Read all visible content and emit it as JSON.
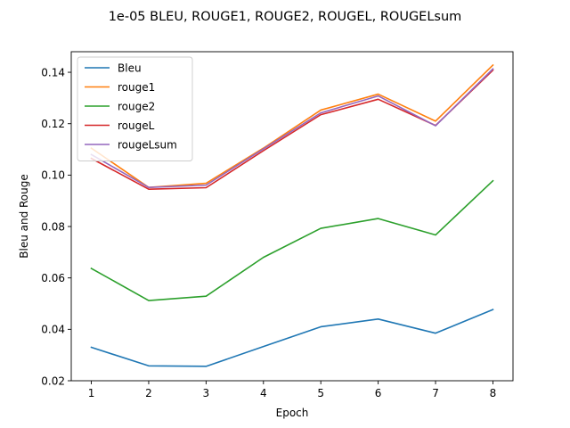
{
  "chart_data": {
    "type": "line",
    "title": "1e-05 BLEU, ROUGE1, ROUGE2, ROUGEL, ROUGELsum",
    "xlabel": "Epoch",
    "ylabel": "Bleu and Rouge",
    "x": [
      1,
      2,
      3,
      4,
      5,
      6,
      7,
      8
    ],
    "xticks": [
      "1",
      "2",
      "3",
      "4",
      "5",
      "6",
      "7",
      "8"
    ],
    "yticks": [
      "0.02",
      "0.04",
      "0.06",
      "0.08",
      "0.10",
      "0.12",
      "0.14"
    ],
    "ylim": [
      0.02,
      0.148
    ],
    "xlim": [
      0.65,
      8.35
    ],
    "grid": false,
    "legend_position": "top-left",
    "series": [
      {
        "name": "Bleu",
        "color": "#1f77b4",
        "values": [
          0.033,
          0.0258,
          0.0256,
          0.0333,
          0.041,
          0.044,
          0.0385,
          0.0477
        ]
      },
      {
        "name": "rouge1",
        "color": "#ff7f0e",
        "values": [
          0.1105,
          0.0952,
          0.0968,
          0.1105,
          0.1253,
          0.1315,
          0.121,
          0.1428
        ]
      },
      {
        "name": "rouge2",
        "color": "#2ca02c",
        "values": [
          0.0637,
          0.0512,
          0.0529,
          0.068,
          0.0793,
          0.0831,
          0.0767,
          0.0978
        ]
      },
      {
        "name": "rougeL",
        "color": "#d62728",
        "values": [
          0.1065,
          0.0945,
          0.0951,
          0.1095,
          0.1235,
          0.1295,
          0.1193,
          0.1408
        ]
      },
      {
        "name": "rougeLsum",
        "color": "#9467bd",
        "values": [
          0.108,
          0.0952,
          0.0961,
          0.1102,
          0.1242,
          0.1308,
          0.1192,
          0.1413
        ]
      }
    ]
  }
}
